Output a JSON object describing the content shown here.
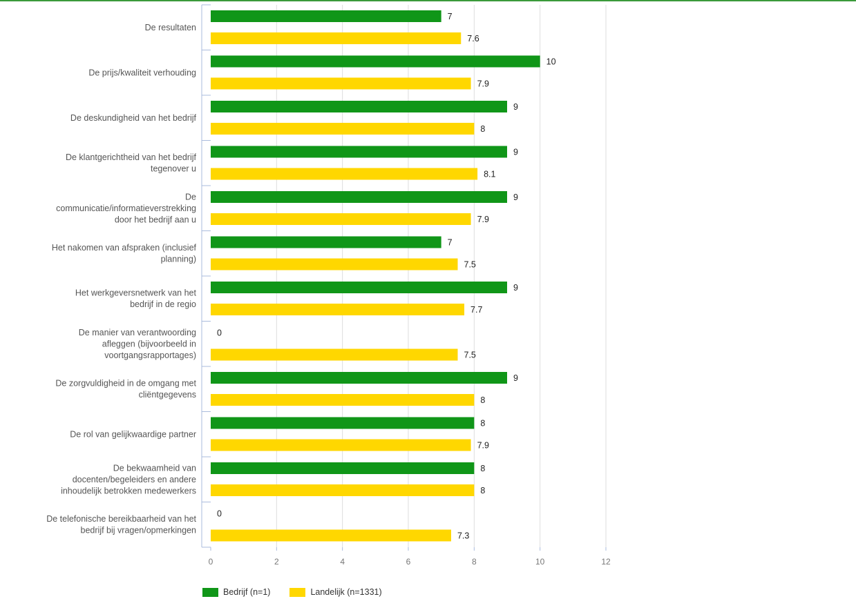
{
  "chart_data": {
    "type": "bar",
    "orientation": "horizontal",
    "categories": [
      "De resultaten",
      "De prijs/kwaliteit verhouding",
      "De deskundigheid van het bedrijf",
      "De klantgerichtheid van het bedrijf tegenover u",
      "De communicatie/informatieverstrekking door het bedrijf aan u",
      "Het nakomen van afspraken (inclusief planning)",
      "Het werkgeversnetwerk van het bedrijf in de regio",
      "De manier van verantwoording afleggen (bijvoorbeeld in voortgangsrapportages)",
      "De zorgvuldigheid in de omgang met cliëntgegevens",
      "De rol van gelijkwaardige partner",
      "De bekwaamheid van docenten/begeleiders en andere inhoudelijk betrokken medewerkers",
      "De telefonische bereikbaarheid van het bedrijf bij vragen/opmerkingen"
    ],
    "category_lines": [
      [
        "De resultaten"
      ],
      [
        "De prijs/kwaliteit verhouding"
      ],
      [
        "De deskundigheid van het bedrijf"
      ],
      [
        "De klantgerichtheid van het bedrijf",
        "tegenover u"
      ],
      [
        "De",
        "communicatie/informatieverstrekking",
        "door het bedrijf aan u"
      ],
      [
        "Het nakomen van afspraken (inclusief",
        "planning)"
      ],
      [
        "Het werkgeversnetwerk van het",
        "bedrijf in de regio"
      ],
      [
        "De manier van verantwoording",
        "afleggen (bijvoorbeeld in",
        "voortgangsrapportages)"
      ],
      [
        "De zorgvuldigheid in de omgang met",
        "cliëntgegevens"
      ],
      [
        "De rol van gelijkwaardige partner"
      ],
      [
        "De bekwaamheid van",
        "docenten/begeleiders en andere",
        "inhoudelijk betrokken medewerkers"
      ],
      [
        "De telefonische bereikbaarheid van het",
        "bedrijf bij vragen/opmerkingen"
      ]
    ],
    "series": [
      {
        "name": "Bedrijf (n=1)",
        "color": "#109618",
        "values": [
          7,
          10,
          9,
          9,
          9,
          7,
          9,
          0,
          9,
          8,
          8,
          0
        ]
      },
      {
        "name": "Landelijk (n=1331)",
        "color": "#ffd700",
        "values": [
          7.6,
          7.9,
          8,
          8.1,
          7.9,
          7.5,
          7.7,
          7.5,
          8,
          7.9,
          8,
          7.3
        ]
      }
    ],
    "value_labels": [
      [
        "7",
        "10",
        "9",
        "9",
        "9",
        "7",
        "9",
        "0",
        "9",
        "8",
        "8",
        "0"
      ],
      [
        "7.6",
        "7.9",
        "8",
        "8.1",
        "7.9",
        "7.5",
        "7.7",
        "7.5",
        "8",
        "7.9",
        "8",
        "7.3"
      ]
    ],
    "xlim": [
      0,
      12
    ],
    "xticks": [
      "0",
      "2",
      "4",
      "6",
      "8",
      "10",
      "12"
    ],
    "grid": true,
    "legend_position": "bottom-left",
    "title": "",
    "xlabel": "",
    "ylabel": ""
  },
  "legend": {
    "items": [
      {
        "label": "Bedrijf (n=1)",
        "color": "#109618"
      },
      {
        "label": "Landelijk (n=1331)",
        "color": "#ffd700"
      }
    ]
  }
}
